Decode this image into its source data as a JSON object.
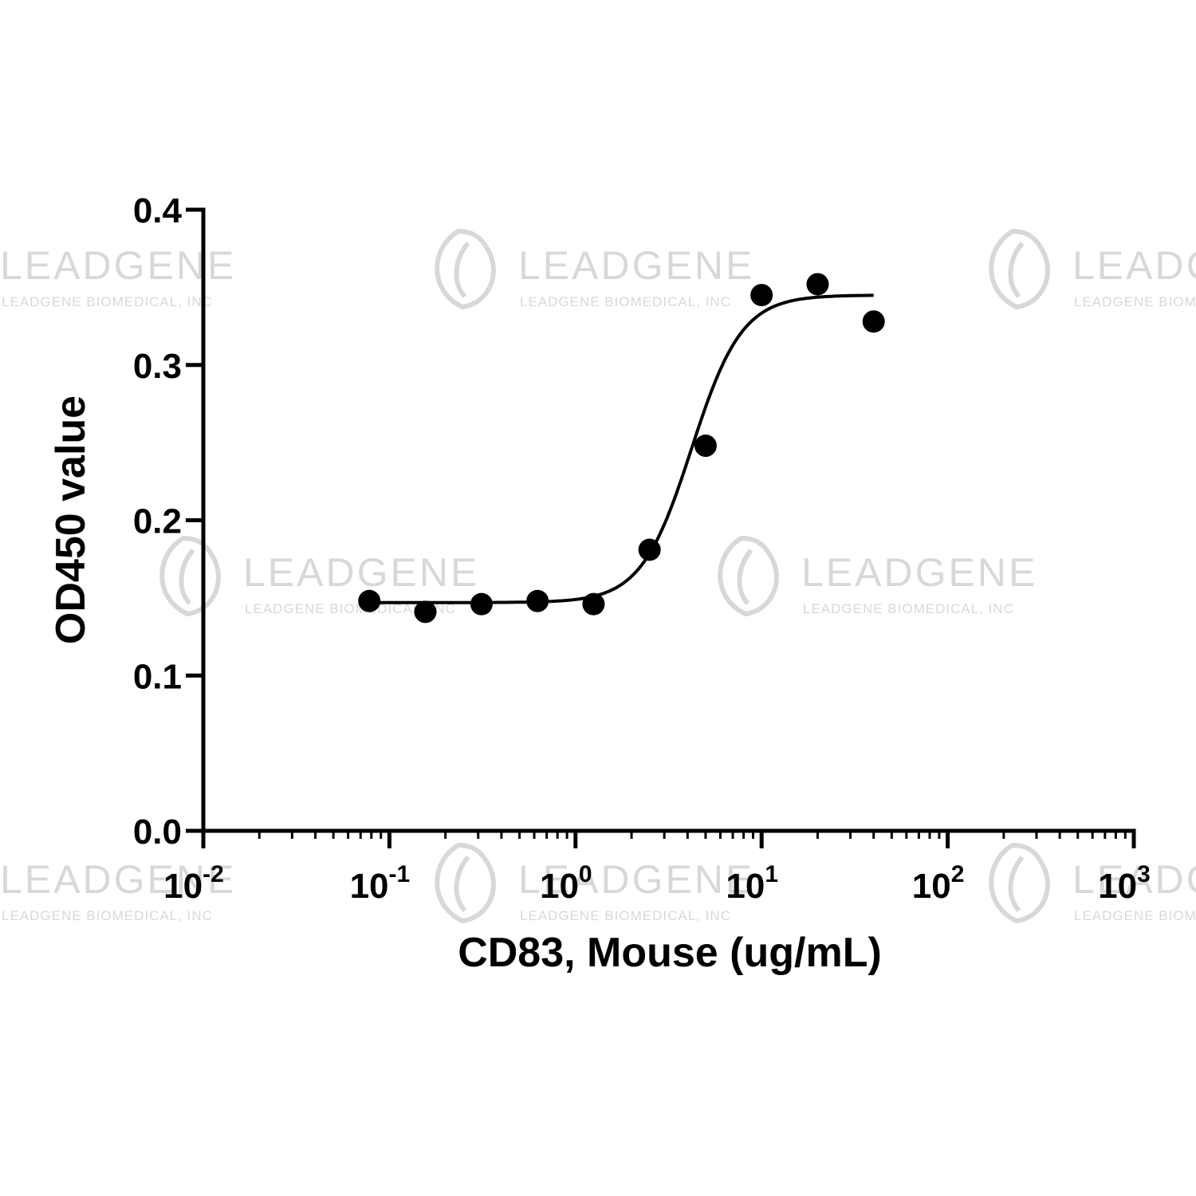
{
  "watermark": {
    "brand": "LEADGENE",
    "company": "LEADGENE BIOMEDICAL, INC",
    "color": "#d8d8d8"
  },
  "chart_data": {
    "type": "scatter",
    "xlabel": "CD83, Mouse (ug/mL)",
    "ylabel": "OD450 value",
    "x_scale": "log10",
    "xlim": [
      0.01,
      1000
    ],
    "ylim": [
      0.0,
      0.4
    ],
    "x_ticks": [
      {
        "base": "10",
        "exp": "-2",
        "value": 0.01
      },
      {
        "base": "10",
        "exp": "-1",
        "value": 0.1
      },
      {
        "base": "10",
        "exp": "0",
        "value": 1
      },
      {
        "base": "10",
        "exp": "1",
        "value": 10
      },
      {
        "base": "10",
        "exp": "2",
        "value": 100
      },
      {
        "base": "10",
        "exp": "3",
        "value": 1000
      }
    ],
    "y_ticks": [
      {
        "label": "0.0",
        "value": 0.0
      },
      {
        "label": "0.1",
        "value": 0.1
      },
      {
        "label": "0.2",
        "value": 0.2
      },
      {
        "label": "0.3",
        "value": 0.3
      },
      {
        "label": "0.4",
        "value": 0.4
      }
    ],
    "grid": false,
    "series": [
      {
        "points": [
          {
            "x": 0.078,
            "y": 0.148
          },
          {
            "x": 0.156,
            "y": 0.141
          },
          {
            "x": 0.3125,
            "y": 0.146
          },
          {
            "x": 0.625,
            "y": 0.148
          },
          {
            "x": 1.25,
            "y": 0.146
          },
          {
            "x": 2.5,
            "y": 0.181
          },
          {
            "x": 5,
            "y": 0.248
          },
          {
            "x": 10,
            "y": 0.345
          },
          {
            "x": 20,
            "y": 0.352
          },
          {
            "x": 40,
            "y": 0.328
          }
        ],
        "marker_color": "#000000"
      }
    ],
    "fit_curve": {
      "model": "4PL",
      "bottom": 0.147,
      "top": 0.345,
      "ec50": 4.2,
      "hill": 3.2,
      "x_range": [
        0.078,
        40
      ],
      "color": "#000000"
    }
  }
}
